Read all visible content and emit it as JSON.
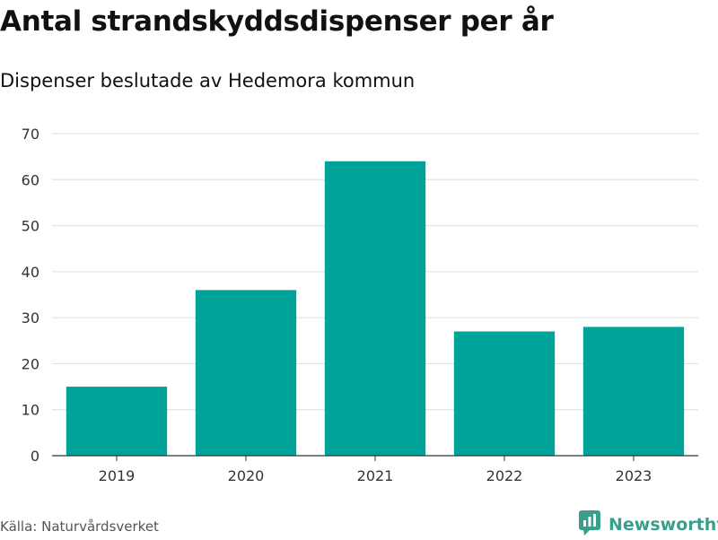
{
  "colors": {
    "bar": "#00a398",
    "grid": "#dddddd",
    "axis": "#333333",
    "brand": "#3a9e8c"
  },
  "footer": {
    "source": "Källa: Naturvårdsverket",
    "brand": "Newsworthy",
    "brand_icon": "newsworthy-logo-icon"
  },
  "chart_data": {
    "type": "bar",
    "title": "Antal strandskyddsdispenser per år",
    "subtitle": "Dispenser beslutade av Hedemora kommun",
    "categories": [
      "2019",
      "2020",
      "2021",
      "2022",
      "2023"
    ],
    "values": [
      15,
      36,
      64,
      27,
      28
    ],
    "xlabel": "",
    "ylabel": "",
    "ylim": [
      0,
      70
    ],
    "yticks": [
      0,
      10,
      20,
      30,
      40,
      50,
      60,
      70
    ],
    "grid": true,
    "legend": "none"
  }
}
